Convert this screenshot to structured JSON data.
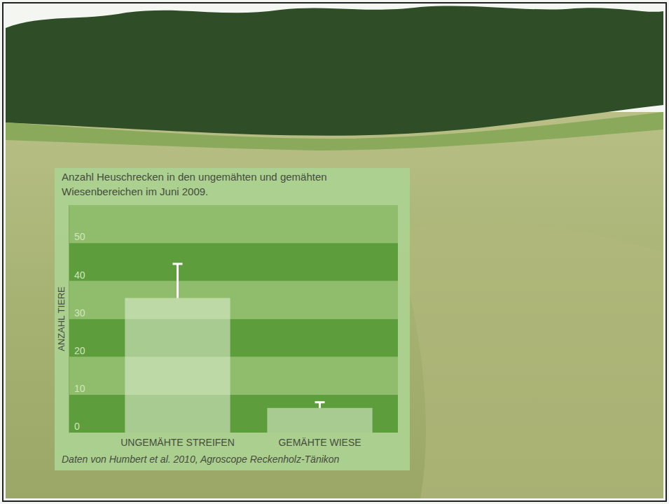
{
  "chart_data": {
    "type": "bar",
    "title": "Anzahl Heuschrecken in den ungemähten und gemähten Wiesenbereichen im Juni 2009.",
    "y_label": "ANZAHL TIERE",
    "source": "Daten von Humbert et al. 2010, Agroscope Reckenholz-Tänikon",
    "categories": [
      "UNGEMÄHTE STREIFEN",
      "GEMÄHTE WIESE"
    ],
    "values": [
      35.5,
      6.5
    ],
    "errors": [
      9,
      1.5
    ],
    "color": "#e3f0d6",
    "ylim": [
      0,
      60
    ],
    "yticks": [
      0,
      10,
      20,
      30,
      40,
      50
    ],
    "grid": true
  }
}
